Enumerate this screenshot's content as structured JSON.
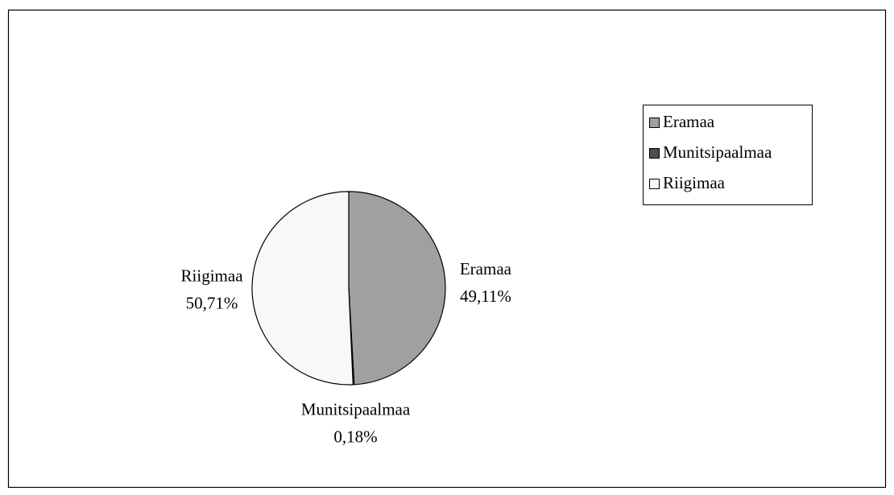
{
  "chart_data": {
    "type": "pie",
    "categories": [
      "Eramaa",
      "Munitsipaalmaa",
      "Riigimaa"
    ],
    "values": [
      49.11,
      0.18,
      50.71
    ],
    "value_labels": [
      "49,11%",
      "0,18%",
      "50,71%"
    ],
    "colors": [
      "#a0a0a0",
      "#4d4d4d",
      "#f8f8f8"
    ],
    "legend": "top-right"
  }
}
